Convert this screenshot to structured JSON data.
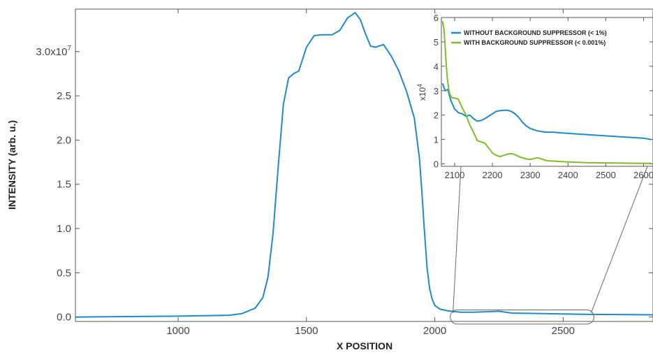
{
  "chart_data": [
    {
      "type": "line",
      "xlabel": "X POSITION",
      "ylabel": "INTENSITY (arb. u.)",
      "xlim": [
        600,
        2850
      ],
      "ylim": [
        -0.05,
        3.48
      ],
      "y_scale_label": "x10^7",
      "xticks": [
        {
          "value": 1000,
          "label": "1000"
        },
        {
          "value": 1500,
          "label": "1500"
        },
        {
          "value": 2000,
          "label": "2000"
        },
        {
          "value": 2500,
          "label": "2500"
        }
      ],
      "yticks": [
        {
          "value": 0.0,
          "label": "0.0"
        },
        {
          "value": 0.5,
          "label": "0.5"
        },
        {
          "value": 1.0,
          "label": "1.0"
        },
        {
          "value": 1.5,
          "label": "1.5"
        },
        {
          "value": 2.0,
          "label": "2.0"
        },
        {
          "value": 2.5,
          "label": "2.5"
        },
        {
          "value": 3.0,
          "label": "3.0x10",
          "sup": "7"
        }
      ],
      "zoom_region": {
        "x": [
          2060,
          2620
        ],
        "y": [
          -0.08,
          0.08
        ]
      },
      "series": [
        {
          "color": "#1f8ac9",
          "x": [
            600,
            1000,
            1200,
            1250,
            1300,
            1330,
            1350,
            1370,
            1390,
            1410,
            1430,
            1450,
            1470,
            1500,
            1530,
            1560,
            1600,
            1630,
            1660,
            1690,
            1710,
            1730,
            1750,
            1770,
            1800,
            1830,
            1860,
            1890,
            1920,
            1940,
            1950,
            1960,
            1970,
            1980,
            1990,
            2000,
            2020,
            2050,
            2100,
            2150,
            2200,
            2250,
            2300,
            2400,
            2500,
            2600,
            2700,
            2850
          ],
          "y": [
            0.0,
            0.01,
            0.02,
            0.04,
            0.1,
            0.22,
            0.45,
            0.95,
            1.7,
            2.4,
            2.7,
            2.75,
            2.78,
            3.05,
            3.18,
            3.19,
            3.19,
            3.24,
            3.38,
            3.44,
            3.36,
            3.2,
            3.06,
            3.05,
            3.08,
            2.95,
            2.78,
            2.55,
            2.25,
            1.8,
            1.4,
            0.95,
            0.55,
            0.32,
            0.2,
            0.13,
            0.09,
            0.07,
            0.055,
            0.055,
            0.06,
            0.065,
            0.045,
            0.04,
            0.035,
            0.03,
            0.028,
            0.025
          ]
        }
      ]
    },
    {
      "type": "line",
      "xlim": [
        2065,
        2625
      ],
      "ylim": [
        -0.1,
        6.0
      ],
      "y_scale_label": "x10^4",
      "xticks": [
        {
          "value": 2100,
          "label": "2100"
        },
        {
          "value": 2200,
          "label": "2200"
        },
        {
          "value": 2300,
          "label": "2300"
        },
        {
          "value": 2400,
          "label": "2400"
        },
        {
          "value": 2500,
          "label": "2500"
        },
        {
          "value": 2600,
          "label": "2600"
        }
      ],
      "yticks": [
        {
          "value": 0,
          "label": "0"
        },
        {
          "value": 1,
          "label": "1"
        },
        {
          "value": 2,
          "label": "2"
        },
        {
          "value": 3,
          "label": "3"
        },
        {
          "value": 4,
          "label": "4"
        },
        {
          "value": 5,
          "label": "5"
        },
        {
          "value": 6,
          "label": "6"
        }
      ],
      "legend_position": "top",
      "series": [
        {
          "name": "WITHOUT BACKGROUND SUPPRESSOR (< 1%)",
          "color": "#1f8ac9",
          "x": [
            2068,
            2075,
            2082,
            2090,
            2100,
            2110,
            2120,
            2130,
            2140,
            2150,
            2160,
            2170,
            2180,
            2190,
            2200,
            2210,
            2220,
            2230,
            2240,
            2250,
            2260,
            2270,
            2280,
            2290,
            2300,
            2320,
            2340,
            2360,
            2400,
            2450,
            2500,
            2550,
            2600,
            2620
          ],
          "y": [
            3.3,
            3.0,
            3.05,
            2.6,
            2.25,
            2.1,
            2.05,
            1.95,
            2.0,
            1.85,
            1.75,
            1.78,
            1.85,
            1.95,
            2.05,
            2.15,
            2.18,
            2.2,
            2.2,
            2.15,
            2.05,
            1.9,
            1.7,
            1.55,
            1.45,
            1.35,
            1.3,
            1.3,
            1.25,
            1.2,
            1.15,
            1.1,
            1.05,
            1.0
          ]
        },
        {
          "name": "WITH BACKGROUND SUPPRESSOR (< 0.001%)",
          "color": "#7dbd2d",
          "x": [
            2068,
            2072,
            2076,
            2080,
            2085,
            2090,
            2095,
            2100,
            2110,
            2120,
            2130,
            2140,
            2150,
            2160,
            2170,
            2180,
            2190,
            2200,
            2210,
            2220,
            2230,
            2240,
            2250,
            2260,
            2270,
            2280,
            2290,
            2300,
            2310,
            2320,
            2330,
            2340,
            2350,
            2400,
            2450,
            2500,
            2550,
            2600,
            2620
          ],
          "y": [
            5.85,
            5.5,
            4.5,
            3.6,
            3.0,
            2.75,
            2.7,
            2.7,
            2.65,
            2.3,
            2.0,
            1.6,
            1.3,
            0.95,
            0.9,
            0.85,
            0.65,
            0.45,
            0.35,
            0.3,
            0.35,
            0.4,
            0.42,
            0.38,
            0.3,
            0.25,
            0.2,
            0.18,
            0.22,
            0.25,
            0.2,
            0.15,
            0.12,
            0.08,
            0.05,
            0.04,
            0.03,
            0.02,
            0.02
          ]
        }
      ]
    }
  ]
}
